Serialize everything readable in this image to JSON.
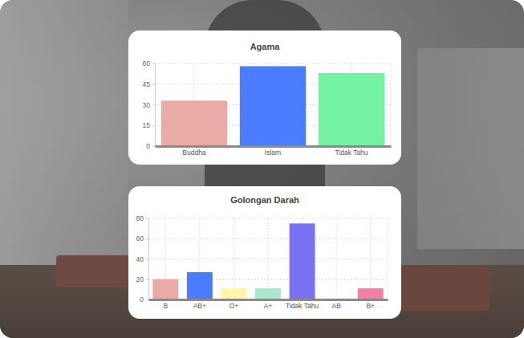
{
  "chart_data": [
    {
      "type": "bar",
      "title": "Agama",
      "categories": [
        "Buddha",
        "Islam",
        "Tidak Tahu"
      ],
      "values": [
        33,
        58,
        53
      ],
      "colors": [
        "#eaaaa6",
        "#4b7bff",
        "#72f2a2"
      ],
      "ylim": [
        0,
        60
      ],
      "yticks": [
        0,
        15,
        30,
        45,
        60
      ],
      "grid": true
    },
    {
      "type": "bar",
      "title": "Golongan Darah",
      "categories": [
        "B",
        "AB+",
        "O+",
        "A+",
        "Tidak Tahu",
        "AB",
        "B+"
      ],
      "values": [
        20,
        27,
        11,
        11,
        75,
        1,
        11
      ],
      "colors": [
        "#eaaaa6",
        "#4b7bff",
        "#fff6a8",
        "#a6e8cc",
        "#7872f2",
        "#c9c6a2",
        "#f57fa8"
      ],
      "ylim": [
        0,
        80
      ],
      "yticks": [
        0,
        20,
        40,
        60,
        80
      ],
      "grid": true
    }
  ]
}
